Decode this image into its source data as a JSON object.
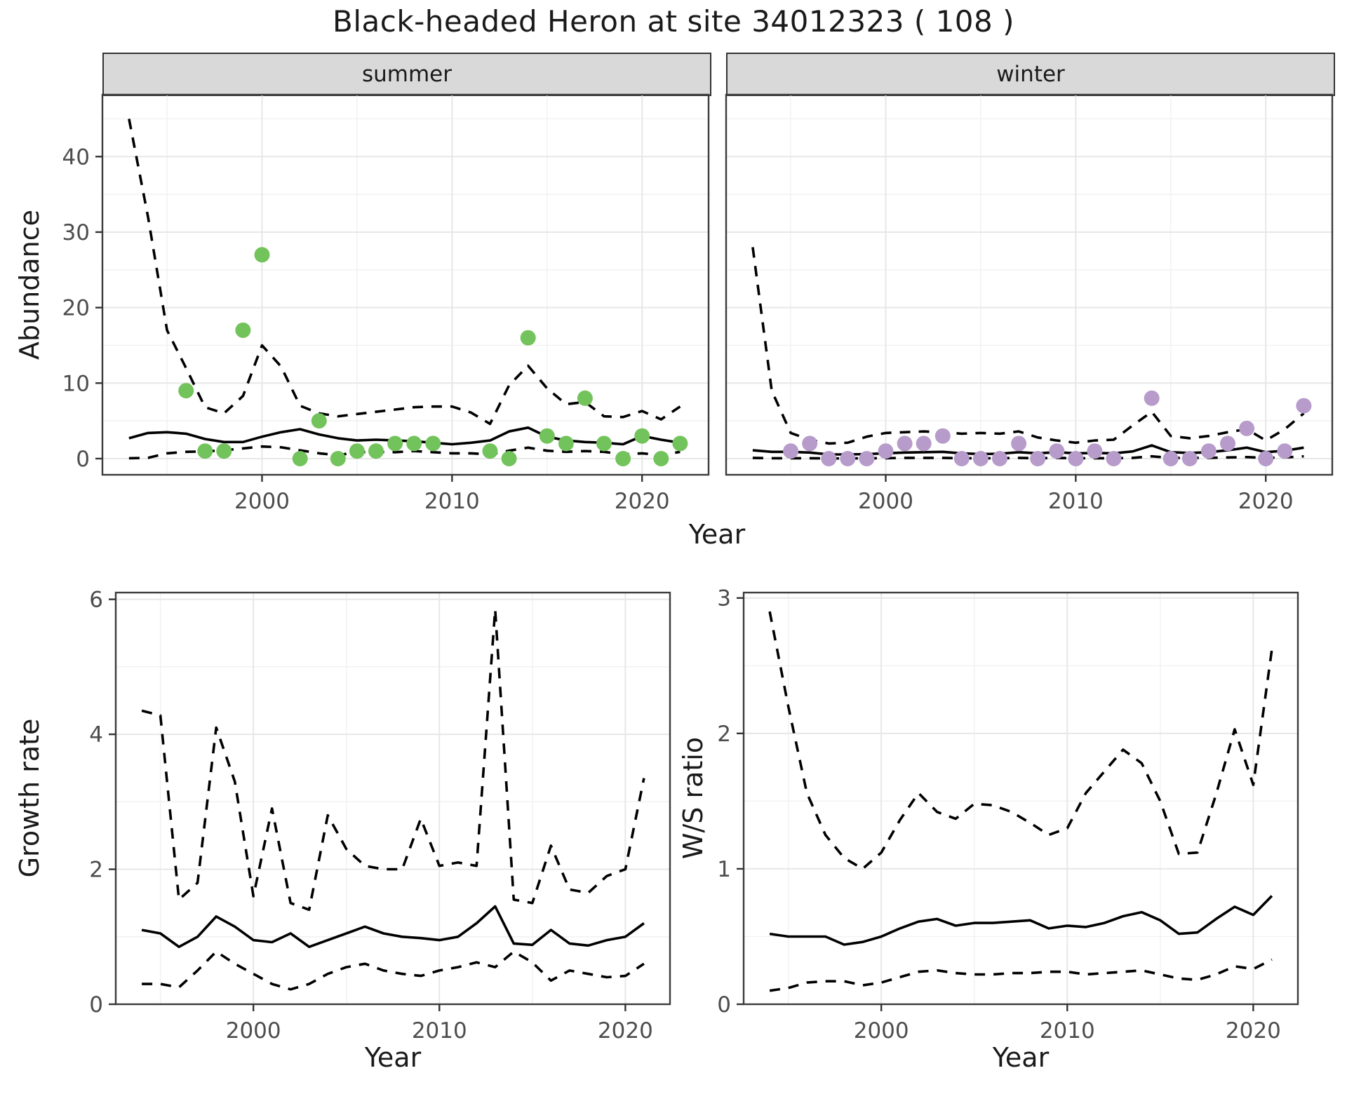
{
  "title": "Black-headed Heron at site 34012323 ( 108 )",
  "facets": [
    {
      "label": "summer"
    },
    {
      "label": "winter"
    }
  ],
  "axes": {
    "abundance_label": "Abundance",
    "growth_label": "Growth rate",
    "ws_label": "W/S ratio",
    "year_label": "Year"
  },
  "colors": {
    "summer_point": "#73C35C",
    "winter_point": "#B79CCB",
    "line": "#000000",
    "strip_fill": "#D9D9D9",
    "panel_border": "#3B3B3B",
    "grid_major": "#E7E7E7",
    "grid_minor": "#F1F1F1",
    "tick_label": "#4D4D4D",
    "tick_mark": "#333333"
  },
  "chart_data": [
    {
      "id": "summer",
      "type": "scatter",
      "facet": "summer",
      "xlabel": "Year",
      "ylabel": "Abundance",
      "xlim": [
        1991.6,
        2023.5
      ],
      "ylim": [
        -2.14,
        48.2
      ],
      "xticks": [
        2000,
        2010,
        2020
      ],
      "xticks_minor": [
        1995,
        2005,
        2015
      ],
      "yticks": [
        0,
        10,
        20,
        30,
        40
      ],
      "yticks_minor": [
        5,
        15,
        25,
        35,
        45
      ],
      "show_ytick_labels": true,
      "point_color": "#73C35C",
      "points": [
        [
          1996,
          9
        ],
        [
          1997,
          1
        ],
        [
          1998,
          1
        ],
        [
          1999,
          17
        ],
        [
          2000,
          27
        ],
        [
          2002,
          0
        ],
        [
          2003,
          5
        ],
        [
          2004,
          0
        ],
        [
          2005,
          1
        ],
        [
          2006,
          1
        ],
        [
          2007,
          2
        ],
        [
          2008,
          2
        ],
        [
          2009,
          2
        ],
        [
          2012,
          1
        ],
        [
          2013,
          0
        ],
        [
          2014,
          16
        ],
        [
          2015,
          3
        ],
        [
          2016,
          2
        ],
        [
          2017,
          8
        ],
        [
          2018,
          2
        ],
        [
          2019,
          0
        ],
        [
          2020,
          3
        ],
        [
          2021,
          0
        ],
        [
          2022,
          2
        ]
      ],
      "line_years": [
        1993,
        1994,
        1995,
        1996,
        1997,
        1998,
        1999,
        2000,
        2001,
        2002,
        2003,
        2004,
        2005,
        2006,
        2007,
        2008,
        2009,
        2010,
        2011,
        2012,
        2013,
        2014,
        2015,
        2016,
        2017,
        2018,
        2019,
        2020,
        2021,
        2022
      ],
      "lines": [
        {
          "name": "median",
          "style": "solid",
          "values": [
            2.7,
            3.4,
            3.5,
            3.3,
            2.6,
            2.2,
            2.2,
            2.9,
            3.5,
            3.9,
            3.2,
            2.7,
            2.4,
            2.5,
            2.4,
            2.3,
            2.1,
            1.9,
            2.1,
            2.4,
            3.6,
            4.1,
            2.9,
            2.4,
            2.2,
            2.1,
            1.9,
            3.0,
            2.5,
            2.1
          ]
        },
        {
          "name": "upper_ci",
          "style": "dashed",
          "values": [
            45,
            32,
            17,
            12,
            6.8,
            6.0,
            8.3,
            15,
            12.2,
            7.0,
            6.0,
            5.6,
            5.9,
            6.2,
            6.5,
            6.8,
            6.9,
            6.9,
            6.1,
            4.6,
            9.7,
            12.3,
            9.3,
            7.2,
            7.5,
            5.6,
            5.5,
            6.3,
            5.2,
            6.9
          ]
        },
        {
          "name": "lower_ci",
          "style": "dashed",
          "values": [
            0.05,
            0.1,
            0.7,
            0.9,
            0.95,
            1.1,
            1.35,
            1.6,
            1.5,
            1.1,
            0.7,
            0.45,
            0.85,
            0.9,
            0.85,
            1.0,
            0.85,
            0.7,
            0.7,
            0.55,
            1.05,
            1.45,
            1.05,
            0.9,
            1.0,
            0.9,
            0.55,
            0.7,
            0.45,
            0.9
          ]
        }
      ]
    },
    {
      "id": "winter",
      "type": "scatter",
      "facet": "winter",
      "xlabel": "Year",
      "ylabel": "Abundance",
      "xlim": [
        1991.6,
        2023.5
      ],
      "ylim": [
        -2.14,
        48.2
      ],
      "xticks": [
        2000,
        2010,
        2020
      ],
      "xticks_minor": [
        1995,
        2005,
        2015
      ],
      "yticks": [
        0,
        10,
        20,
        30,
        40
      ],
      "yticks_minor": [
        5,
        15,
        25,
        35,
        45
      ],
      "show_ytick_labels": false,
      "point_color": "#B79CCB",
      "points": [
        [
          1995,
          1
        ],
        [
          1996,
          2
        ],
        [
          1997,
          0
        ],
        [
          1998,
          0
        ],
        [
          1999,
          0
        ],
        [
          2000,
          1
        ],
        [
          2001,
          2
        ],
        [
          2002,
          2
        ],
        [
          2003,
          3
        ],
        [
          2004,
          0
        ],
        [
          2005,
          0
        ],
        [
          2006,
          0
        ],
        [
          2007,
          2
        ],
        [
          2008,
          0
        ],
        [
          2009,
          1
        ],
        [
          2010,
          0
        ],
        [
          2011,
          1
        ],
        [
          2012,
          0
        ],
        [
          2014,
          8
        ],
        [
          2015,
          0
        ],
        [
          2016,
          0
        ],
        [
          2017,
          1
        ],
        [
          2018,
          2
        ],
        [
          2019,
          4
        ],
        [
          2020,
          0
        ],
        [
          2021,
          1
        ],
        [
          2022,
          7
        ]
      ],
      "line_years": [
        1993,
        1994,
        1995,
        1996,
        1997,
        1998,
        1999,
        2000,
        2001,
        2002,
        2003,
        2004,
        2005,
        2006,
        2007,
        2008,
        2009,
        2010,
        2011,
        2012,
        2013,
        2014,
        2015,
        2016,
        2017,
        2018,
        2019,
        2020,
        2021,
        2022
      ],
      "lines": [
        {
          "name": "median",
          "style": "solid",
          "values": [
            1.1,
            0.9,
            0.9,
            0.8,
            0.55,
            0.55,
            0.6,
            0.7,
            0.8,
            0.85,
            0.9,
            0.7,
            0.6,
            0.65,
            0.85,
            0.7,
            0.85,
            0.7,
            0.75,
            0.7,
            0.95,
            1.75,
            0.85,
            0.75,
            0.85,
            1.1,
            1.45,
            0.85,
            1.05,
            1.45
          ]
        },
        {
          "name": "upper_ci",
          "style": "dashed",
          "values": [
            28,
            9,
            3.4,
            2.5,
            2.0,
            2.1,
            2.9,
            3.4,
            3.5,
            3.6,
            3.5,
            3.3,
            3.4,
            3.3,
            3.6,
            2.8,
            2.4,
            2.1,
            2.4,
            2.5,
            4.4,
            6.2,
            3.0,
            2.7,
            3.0,
            3.5,
            3.9,
            2.4,
            3.9,
            6.0
          ]
        },
        {
          "name": "lower_ci",
          "style": "dashed",
          "values": [
            0.1,
            0.05,
            0.05,
            0.05,
            0.02,
            0.02,
            0.05,
            0.05,
            0.1,
            0.1,
            0.1,
            0.05,
            0.05,
            0.05,
            0.1,
            0.05,
            0.1,
            0.05,
            0.05,
            0.05,
            0.1,
            0.3,
            0.1,
            0.1,
            0.1,
            0.15,
            0.2,
            0.1,
            0.15,
            0.3
          ]
        }
      ]
    },
    {
      "id": "growth",
      "type": "line",
      "xlabel": "Year",
      "ylabel": "Growth rate",
      "xlim": [
        1992.6,
        2022.4
      ],
      "ylim": [
        0,
        6.1
      ],
      "xticks": [
        2000,
        2010,
        2020
      ],
      "xticks_minor": [
        1995,
        2005,
        2015
      ],
      "yticks": [
        0,
        2,
        4,
        6
      ],
      "yticks_minor": [
        1,
        3,
        5
      ],
      "show_ytick_labels": true,
      "points": [],
      "line_years": [
        1994,
        1995,
        1996,
        1997,
        1998,
        1999,
        2000,
        2001,
        2002,
        2003,
        2004,
        2005,
        2006,
        2007,
        2008,
        2009,
        2010,
        2011,
        2012,
        2013,
        2014,
        2015,
        2016,
        2017,
        2018,
        2019,
        2020,
        2021
      ],
      "lines": [
        {
          "name": "median",
          "style": "solid",
          "values": [
            1.1,
            1.05,
            0.85,
            1.0,
            1.3,
            1.15,
            0.95,
            0.92,
            1.05,
            0.85,
            0.95,
            1.05,
            1.15,
            1.05,
            1.0,
            0.98,
            0.95,
            1.0,
            1.2,
            1.45,
            0.9,
            0.88,
            1.1,
            0.9,
            0.87,
            0.95,
            1.0,
            1.2
          ]
        },
        {
          "name": "upper_ci",
          "style": "dashed",
          "values": [
            4.35,
            4.28,
            1.55,
            1.8,
            4.1,
            3.3,
            1.6,
            2.9,
            1.5,
            1.4,
            2.8,
            2.3,
            2.05,
            2.0,
            2.0,
            2.75,
            2.05,
            2.1,
            2.05,
            5.85,
            1.55,
            1.5,
            2.35,
            1.7,
            1.65,
            1.9,
            2.0,
            3.35
          ]
        },
        {
          "name": "lower_ci",
          "style": "dashed",
          "values": [
            0.3,
            0.3,
            0.25,
            0.5,
            0.78,
            0.6,
            0.45,
            0.3,
            0.22,
            0.3,
            0.45,
            0.55,
            0.6,
            0.5,
            0.45,
            0.42,
            0.5,
            0.55,
            0.62,
            0.55,
            0.78,
            0.62,
            0.35,
            0.5,
            0.45,
            0.4,
            0.42,
            0.6
          ]
        }
      ]
    },
    {
      "id": "ws",
      "type": "line",
      "xlabel": "Year",
      "ylabel": "W/S ratio",
      "xlim": [
        1992.6,
        2022.4
      ],
      "ylim": [
        0,
        3.04
      ],
      "xticks": [
        2000,
        2010,
        2020
      ],
      "xticks_minor": [
        1995,
        2005,
        2015
      ],
      "yticks": [
        0,
        1,
        2,
        3
      ],
      "yticks_minor": [
        0.5,
        1.5,
        2.5
      ],
      "show_ytick_labels": true,
      "points": [],
      "line_years": [
        1994,
        1995,
        1996,
        1997,
        1998,
        1999,
        2000,
        2001,
        2002,
        2003,
        2004,
        2005,
        2006,
        2007,
        2008,
        2009,
        2010,
        2011,
        2012,
        2013,
        2014,
        2015,
        2016,
        2017,
        2018,
        2019,
        2020,
        2021
      ],
      "lines": [
        {
          "name": "median",
          "style": "solid",
          "values": [
            0.52,
            0.5,
            0.5,
            0.5,
            0.44,
            0.46,
            0.5,
            0.56,
            0.61,
            0.63,
            0.58,
            0.6,
            0.6,
            0.61,
            0.62,
            0.56,
            0.58,
            0.57,
            0.6,
            0.65,
            0.68,
            0.62,
            0.52,
            0.53,
            0.63,
            0.72,
            0.66,
            0.8
          ]
        },
        {
          "name": "upper_ci",
          "style": "dashed",
          "values": [
            2.9,
            2.2,
            1.56,
            1.25,
            1.08,
            1.0,
            1.12,
            1.36,
            1.56,
            1.42,
            1.37,
            1.48,
            1.47,
            1.42,
            1.34,
            1.25,
            1.3,
            1.56,
            1.72,
            1.88,
            1.78,
            1.5,
            1.11,
            1.12,
            1.55,
            2.03,
            1.62,
            2.62
          ]
        },
        {
          "name": "lower_ci",
          "style": "dashed",
          "values": [
            0.1,
            0.12,
            0.16,
            0.17,
            0.17,
            0.14,
            0.16,
            0.2,
            0.24,
            0.25,
            0.23,
            0.22,
            0.22,
            0.23,
            0.23,
            0.24,
            0.24,
            0.22,
            0.23,
            0.24,
            0.25,
            0.22,
            0.19,
            0.18,
            0.22,
            0.28,
            0.26,
            0.33
          ]
        }
      ]
    }
  ]
}
